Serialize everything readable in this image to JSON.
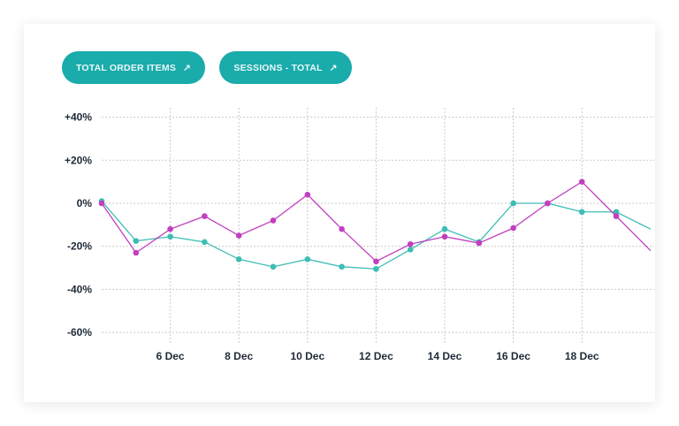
{
  "buttons": [
    {
      "label": "TOTAL ORDER ITEMS",
      "icon": "arrow-up-right-icon",
      "glyph": "↗"
    },
    {
      "label": "SESSIONS - TOTAL",
      "icon": "arrow-up-right-icon",
      "glyph": "↗"
    }
  ],
  "chart_data": {
    "type": "line",
    "title": "",
    "xlabel": "",
    "ylabel": "",
    "ylim": [
      -60,
      40
    ],
    "y_ticks": [
      "+40%",
      "+20%",
      "0%",
      "-20%",
      "-40%",
      "-60%"
    ],
    "y_tick_values": [
      40,
      20,
      0,
      -20,
      -40,
      -60
    ],
    "x": [
      "4 Dec",
      "5 Dec",
      "6 Dec",
      "7 Dec",
      "8 Dec",
      "9 Dec",
      "10 Dec",
      "11 Dec",
      "12 Dec",
      "13 Dec",
      "14 Dec",
      "15 Dec",
      "16 Dec",
      "17 Dec",
      "18 Dec",
      "19 Dec",
      "20 Dec"
    ],
    "x_tick_labels": [
      "6 Dec",
      "8 Dec",
      "10 Dec",
      "12 Dec",
      "14 Dec",
      "16 Dec",
      "18 Dec"
    ],
    "grid": true,
    "series": [
      {
        "color": "#c23fc0",
        "values": [
          0,
          -23,
          -12,
          -6,
          -15,
          -8,
          4,
          -12,
          -27,
          -19,
          -15.5,
          -18.5,
          -11.5,
          0,
          10,
          -6,
          -22
        ]
      },
      {
        "color": "#3dbdb3",
        "values": [
          1,
          -17.5,
          -15.5,
          -18,
          -26,
          -29.5,
          -26,
          -29.5,
          -30.5,
          -21.5,
          -12,
          -18,
          0,
          0,
          -4,
          -4,
          -12
        ]
      }
    ]
  }
}
